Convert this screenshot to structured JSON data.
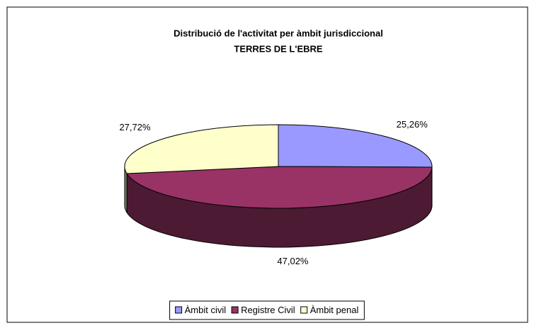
{
  "chart_data": {
    "type": "pie3d",
    "title": "Distribució de l'activitat per àmbit jurisdiccional",
    "subtitle": "TERRES DE L'EBRE",
    "categories": [
      "Àmbit civil",
      "Registre Civil",
      "Àmbit penal"
    ],
    "values": [
      25.26,
      47.02,
      27.72
    ],
    "value_labels": [
      "25,26%",
      "47,02%",
      "27,72%"
    ],
    "colors": [
      "#9999ff",
      "#993366",
      "#ffffcc"
    ],
    "legend": "bottom"
  }
}
